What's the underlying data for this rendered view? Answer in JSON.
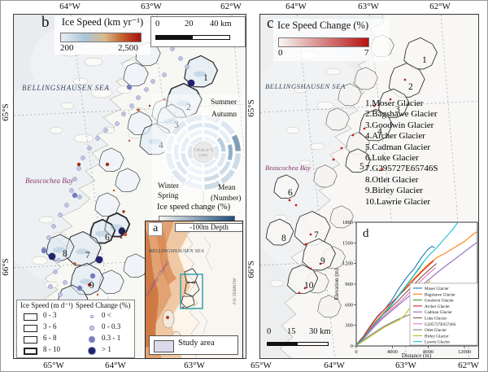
{
  "axes": {
    "b_top": [
      "64°W",
      "63°W",
      "62°W"
    ],
    "b_bottom": [
      "65°W",
      "64°W",
      "63°W"
    ],
    "b_left": [
      "65°S",
      "66°S"
    ],
    "c_top": [
      "64°W",
      "63°W",
      "62°W"
    ],
    "c_bottom": [
      "65°W",
      "64°W",
      "63°W",
      "62°W"
    ],
    "c_left": [
      "65°S",
      "66°S"
    ]
  },
  "glacier_numbers": [
    "1",
    "2",
    "3",
    "4",
    "5",
    "6",
    "7",
    "8",
    "9",
    "10"
  ],
  "panel_b": {
    "label": "b",
    "colorbar_title": "Ice Speed (km yr⁻¹)",
    "colorbar_min": "200",
    "colorbar_max": "2,500",
    "scalebar": {
      "t0": "0",
      "t1": "20",
      "t2": "40 km"
    },
    "sea_label": "BELLINGSHAUSEN SEA",
    "bay_label": "Beascochea Bay",
    "season_chart": {
      "summer": "Summer",
      "autumn": "Autumn",
      "winter": "Winter",
      "spring": "Spring",
      "mean": "Mean",
      "number": "(Number)",
      "center_value": "1.66 (m d⁻¹)",
      "center_count": "(101)",
      "colorbar_title": "Ice speed change (%)",
      "ticks": [
        "0",
        "3",
        "6"
      ]
    },
    "legend": {
      "speed_title": "Ice Speed (m d⁻¹)",
      "speed_items": [
        "0 - 3",
        "3 - 6",
        "6 - 8",
        "8 - 10"
      ],
      "change_title": "Speed Change (%)",
      "change_items": [
        "0 <",
        "0 - 0.3",
        "0.3 - 1",
        "> 1"
      ]
    }
  },
  "panel_a": {
    "label": "a",
    "depth_label": "-100m Depth",
    "sea_label": "BELLINGSHAUSEN SEA",
    "channel_label": "Grandidier Channel",
    "coast_label": "FIS TERRITM",
    "study_area": "Study area"
  },
  "panel_c": {
    "label": "c",
    "colorbar_title": "Ice Speed Change (%)",
    "colorbar_min": "0",
    "colorbar_max": "7",
    "sea_label": "BELLINGSHAUSEN SEA",
    "bay_label": "Beascochea Bay",
    "scalebar": {
      "t0": "0",
      "t1": "15",
      "t2": "30 km"
    },
    "glacier_list": [
      "1.Moser Glacier",
      "2.Bagshawe Glacier",
      "3.Goodwin Glacier",
      "4.Archer Glacier",
      "5.Cadman Glacier",
      "6.Luke Glacier",
      "7.G295727E65746S",
      "8.Otlet Glacier",
      "9.Birley Glacier",
      "10.Lawrie Glacier"
    ]
  },
  "panel_d": {
    "label": "d"
  },
  "colors": {
    "speed_colorbar": [
      "#e9edf0",
      "#a9c6d8",
      "#d9b98a",
      "#c35b28",
      "#a81210"
    ],
    "change_colorbar_blue": [
      "#f4f4f2",
      "#1f4e79"
    ],
    "change_colorbar_red": [
      "#f8f6f3",
      "#b51211"
    ],
    "change_dot_fills": [
      "#ffffff",
      "#c7cbe6",
      "#767cc0",
      "#23246e"
    ],
    "study_area_fill": "#ded9ea",
    "study_box_teal": "#2fa3ab"
  },
  "chart_data": {
    "type": "line",
    "xlabel": "Distance (m)",
    "ylabel": "Elevation (m)",
    "xlim": [
      0,
      13500
    ],
    "ylim": [
      0,
      1800
    ],
    "xticks": [
      0,
      4000,
      8000,
      12000
    ],
    "yticks": [
      0,
      300,
      600,
      900,
      1200,
      1500,
      1800
    ],
    "legend_position": "lower right",
    "series": [
      {
        "name": "Moser Glacier",
        "color": "#1f77b4",
        "points": [
          [
            0,
            20
          ],
          [
            800,
            140
          ],
          [
            1600,
            300
          ],
          [
            2400,
            440
          ],
          [
            3200,
            540
          ],
          [
            4000,
            680
          ],
          [
            4800,
            850
          ],
          [
            5600,
            1000
          ],
          [
            6400,
            1120
          ],
          [
            7200,
            1280
          ],
          [
            7900,
            1400
          ],
          [
            8400,
            1450
          ],
          [
            8700,
            1430
          ]
        ]
      },
      {
        "name": "Bagshawe Glacier",
        "color": "#ff7f0e",
        "points": [
          [
            0,
            10
          ],
          [
            1000,
            160
          ],
          [
            2000,
            330
          ],
          [
            3000,
            480
          ],
          [
            4000,
            620
          ],
          [
            5000,
            780
          ],
          [
            6000,
            930
          ],
          [
            7000,
            1060
          ],
          [
            8000,
            1190
          ],
          [
            9000,
            1290
          ],
          [
            10000,
            1360
          ],
          [
            11000,
            1440
          ],
          [
            12000,
            1520
          ],
          [
            13000,
            1630
          ],
          [
            13400,
            1660
          ]
        ]
      },
      {
        "name": "Goodwin Glacier",
        "color": "#2ca02c",
        "points": [
          [
            0,
            10
          ],
          [
            700,
            90
          ],
          [
            1400,
            200
          ],
          [
            2100,
            320
          ],
          [
            2800,
            430
          ],
          [
            3500,
            540
          ],
          [
            4200,
            650
          ],
          [
            4900,
            770
          ],
          [
            5600,
            890
          ],
          [
            6300,
            1010
          ],
          [
            7000,
            1130
          ],
          [
            7500,
            1230
          ]
        ]
      },
      {
        "name": "Archer Glacier",
        "color": "#d62728",
        "points": [
          [
            0,
            15
          ],
          [
            800,
            140
          ],
          [
            1600,
            290
          ],
          [
            2400,
            430
          ],
          [
            3200,
            540
          ],
          [
            4000,
            640
          ],
          [
            4800,
            740
          ],
          [
            5600,
            850
          ],
          [
            6400,
            960
          ],
          [
            7200,
            1070
          ],
          [
            8000,
            1170
          ],
          [
            8600,
            1240
          ]
        ]
      },
      {
        "name": "Cadman Glacier",
        "color": "#9467bd",
        "points": [
          [
            0,
            10
          ],
          [
            1000,
            130
          ],
          [
            2000,
            280
          ],
          [
            3000,
            410
          ],
          [
            4000,
            520
          ],
          [
            5000,
            630
          ],
          [
            6000,
            740
          ],
          [
            7000,
            850
          ],
          [
            8000,
            960
          ],
          [
            9000,
            1070
          ],
          [
            10000,
            1170
          ],
          [
            11000,
            1270
          ],
          [
            12000,
            1370
          ],
          [
            13000,
            1470
          ],
          [
            13800,
            1540
          ]
        ]
      },
      {
        "name": "Luke Glacier",
        "color": "#8c564b",
        "points": [
          [
            0,
            10
          ],
          [
            900,
            130
          ],
          [
            1800,
            290
          ],
          [
            2700,
            420
          ],
          [
            3600,
            530
          ],
          [
            4500,
            640
          ],
          [
            5400,
            760
          ],
          [
            6300,
            880
          ],
          [
            7200,
            1000
          ],
          [
            8100,
            1110
          ],
          [
            8900,
            1200
          ]
        ]
      },
      {
        "name": "G295727E65746S",
        "color": "#e377c2",
        "points": [
          [
            0,
            10
          ],
          [
            900,
            120
          ],
          [
            1800,
            260
          ],
          [
            2700,
            390
          ],
          [
            3600,
            500
          ],
          [
            4500,
            600
          ],
          [
            5400,
            710
          ],
          [
            6300,
            830
          ],
          [
            7200,
            950
          ],
          [
            8100,
            1060
          ],
          [
            8800,
            1140
          ]
        ]
      },
      {
        "name": "Otlet Glacier",
        "color": "#7f7f7f",
        "points": [
          [
            0,
            20
          ],
          [
            1500,
            150
          ],
          [
            3000,
            280
          ],
          [
            4500,
            380
          ],
          [
            6000,
            460
          ],
          [
            7500,
            530
          ],
          [
            9000,
            590
          ],
          [
            10500,
            640
          ],
          [
            12000,
            700
          ],
          [
            13400,
            760
          ]
        ]
      },
      {
        "name": "Birley Glacier",
        "color": "#bcbd22",
        "points": [
          [
            0,
            5
          ],
          [
            800,
            70
          ],
          [
            1600,
            140
          ],
          [
            2400,
            210
          ],
          [
            3200,
            280
          ],
          [
            4000,
            330
          ],
          [
            4800,
            380
          ],
          [
            5400,
            450
          ],
          [
            6000,
            560
          ],
          [
            6600,
            690
          ],
          [
            7200,
            810
          ],
          [
            7800,
            900
          ],
          [
            8200,
            950
          ]
        ]
      },
      {
        "name": "Lawrie Glacier",
        "color": "#17becf",
        "points": [
          [
            0,
            10
          ],
          [
            800,
            110
          ],
          [
            1600,
            240
          ],
          [
            2400,
            370
          ],
          [
            3200,
            490
          ],
          [
            4000,
            610
          ],
          [
            4800,
            740
          ],
          [
            5600,
            890
          ],
          [
            6400,
            1030
          ],
          [
            7200,
            1180
          ],
          [
            8000,
            1310
          ],
          [
            9000,
            1440
          ],
          [
            10000,
            1590
          ],
          [
            10800,
            1710
          ],
          [
            11500,
            1840
          ]
        ]
      }
    ]
  }
}
